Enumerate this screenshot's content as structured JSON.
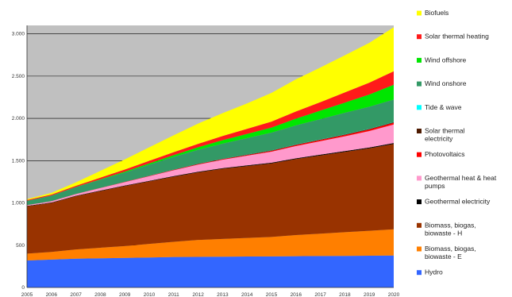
{
  "chart_data": {
    "type": "area",
    "stacked": true,
    "title": "",
    "xlabel": "",
    "ylabel": "",
    "x": [
      "2005",
      "2006",
      "2007",
      "2008",
      "2009",
      "2010",
      "2011",
      "2012",
      "2013",
      "2014",
      "2015",
      "2016",
      "2017",
      "2018",
      "2019",
      "2020"
    ],
    "ylim": [
      0,
      3100
    ],
    "yticks": [
      0,
      500,
      1000,
      1500,
      2000,
      2500,
      3000
    ],
    "ytick_labels": [
      "0",
      "500",
      "1.000",
      "1.500",
      "2.000",
      "2.500",
      "3.000"
    ],
    "grid": "horizontal",
    "background_color": "#c0c0c0",
    "legend_position": "right",
    "series": [
      {
        "name": "Hydro",
        "color": "#3366ff",
        "values": [
          320,
          330,
          340,
          345,
          350,
          355,
          360,
          362,
          364,
          366,
          368,
          370,
          372,
          374,
          376,
          378
        ]
      },
      {
        "name": "Biomass, biogas, biowaste - E",
        "color": "#ff7f00",
        "values": [
          80,
          90,
          110,
          125,
          140,
          160,
          180,
          200,
          210,
          220,
          230,
          250,
          265,
          280,
          295,
          310
        ]
      },
      {
        "name": "Biomass, biogas, biowaste - H",
        "color": "#993300",
        "values": [
          560,
          580,
          630,
          670,
          710,
          740,
          770,
          800,
          830,
          850,
          870,
          900,
          925,
          950,
          975,
          1010
        ]
      },
      {
        "name": "Geothermal electricity",
        "color": "#000000",
        "values": [
          5,
          5,
          5,
          6,
          6,
          6,
          7,
          7,
          7,
          8,
          8,
          8,
          9,
          9,
          10,
          10
        ]
      },
      {
        "name": "Geothermal heat & heat pumps",
        "color": "#ff99cc",
        "values": [
          10,
          15,
          20,
          30,
          40,
          55,
          70,
          85,
          100,
          115,
          130,
          145,
          160,
          175,
          195,
          220
        ]
      },
      {
        "name": "Photovoltaics",
        "color": "#ff0000",
        "values": [
          0,
          1,
          1,
          2,
          3,
          4,
          5,
          6,
          7,
          8,
          10,
          12,
          14,
          16,
          18,
          20
        ]
      },
      {
        "name": "Solar thermal electricity",
        "color": "#4d1a00",
        "values": [
          0,
          0,
          0,
          1,
          1,
          2,
          2,
          3,
          3,
          4,
          4,
          5,
          5,
          6,
          6,
          7
        ]
      },
      {
        "name": "Tide & wave",
        "color": "#00ffff",
        "values": [
          0,
          0,
          0,
          0,
          0,
          1,
          1,
          1,
          1,
          1,
          2,
          2,
          2,
          2,
          3,
          3
        ]
      },
      {
        "name": "Wind onshore",
        "color": "#339966",
        "values": [
          50,
          65,
          80,
          95,
          110,
          130,
          150,
          165,
          180,
          195,
          210,
          225,
          240,
          255,
          260,
          265
        ]
      },
      {
        "name": "Wind offshore",
        "color": "#00e600",
        "values": [
          0,
          1,
          2,
          5,
          10,
          15,
          20,
          30,
          40,
          50,
          60,
          80,
          100,
          120,
          145,
          175
        ]
      },
      {
        "name": "Solar thermal heating",
        "color": "#ff1a1a",
        "values": [
          10,
          12,
          15,
          20,
          25,
          30,
          35,
          40,
          50,
          60,
          70,
          85,
          100,
          120,
          140,
          160
        ]
      },
      {
        "name": "Biofuels",
        "color": "#ffff00",
        "values": [
          10,
          20,
          40,
          80,
          120,
          160,
          200,
          240,
          270,
          300,
          340,
          380,
          410,
          440,
          470,
          520
        ]
      }
    ]
  }
}
